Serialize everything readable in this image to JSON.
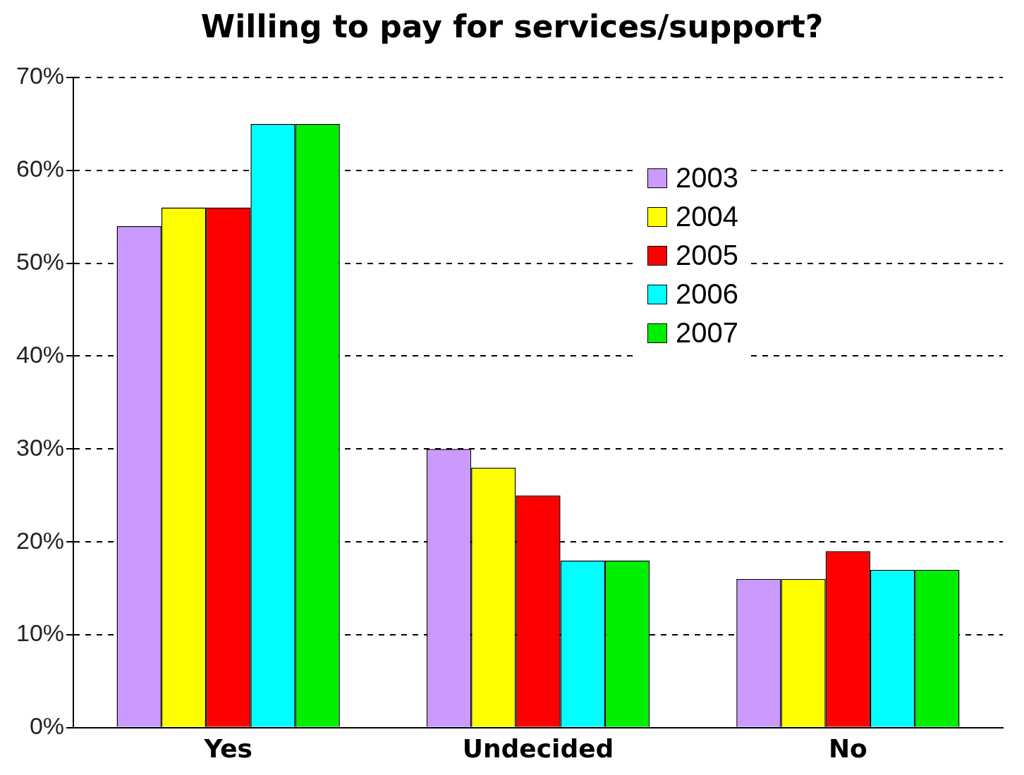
{
  "chart_data": {
    "type": "bar",
    "title": "Willing to pay for services/support?",
    "categories": [
      "Yes",
      "Undecided",
      "No"
    ],
    "series": [
      {
        "name": "2003",
        "color": "#cc99ff",
        "values": [
          54,
          30,
          16
        ]
      },
      {
        "name": "2004",
        "color": "#ffff00",
        "values": [
          56,
          28,
          16
        ]
      },
      {
        "name": "2005",
        "color": "#ff0000",
        "values": [
          56,
          25,
          19
        ]
      },
      {
        "name": "2006",
        "color": "#00ffff",
        "values": [
          65,
          18,
          17
        ]
      },
      {
        "name": "2007",
        "color": "#00ee00",
        "values": [
          65,
          18,
          17
        ]
      }
    ],
    "ylim": [
      0,
      70
    ],
    "yticks": [
      {
        "value": 0,
        "label": "0%"
      },
      {
        "value": 10,
        "label": "10%"
      },
      {
        "value": 20,
        "label": "20%"
      },
      {
        "value": 30,
        "label": "30%"
      },
      {
        "value": 40,
        "label": "40%"
      },
      {
        "value": 50,
        "label": "50%"
      },
      {
        "value": 60,
        "label": "60%"
      },
      {
        "value": 70,
        "label": "70%"
      }
    ],
    "grid": "y",
    "legend": "top right"
  }
}
